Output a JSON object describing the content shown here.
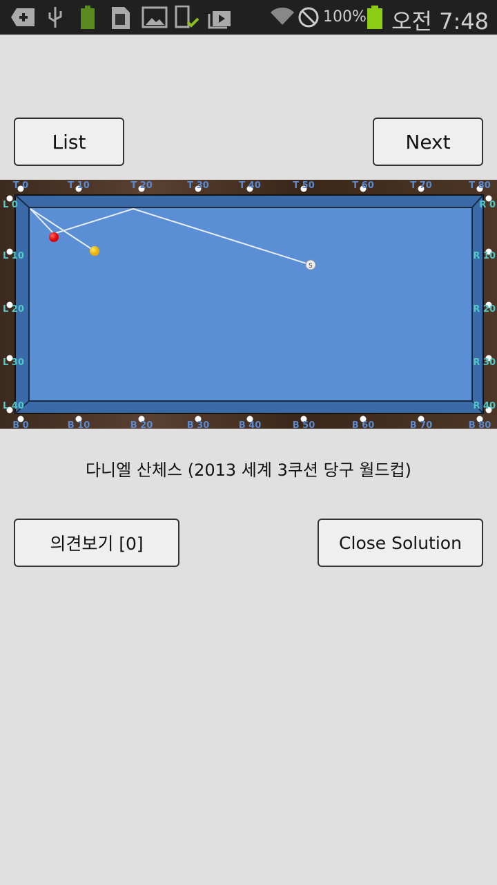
{
  "status_bar": {
    "time": "오전 7:48",
    "battery_percent": "100%",
    "notif_battery": "100%",
    "icons": [
      "add-icon",
      "usb-icon",
      "battery-icon",
      "sd-card-icon",
      "image-icon",
      "device-check-icon",
      "play-store-icon",
      "wifi-icon",
      "blocked-icon",
      "battery-icon"
    ]
  },
  "toolbar": {
    "list_label": "List",
    "next_label": "Next"
  },
  "table": {
    "top_labels": [
      "T 0",
      "T 10",
      "T 20",
      "T 30",
      "T 40",
      "T 50",
      "T 60",
      "T 70",
      "T 80"
    ],
    "bottom_labels": [
      "B 0",
      "B 10",
      "B 20",
      "B 30",
      "B 40",
      "B 50",
      "B 60",
      "B 70",
      "B 80"
    ],
    "left_labels": [
      "L 0",
      "L 10",
      "L 20",
      "L 30",
      "L 40"
    ],
    "right_labels": [
      "R 0",
      "R 10",
      "R 20",
      "R 30",
      "R 40"
    ],
    "cue_ball_label": "S",
    "colors": {
      "felt": "#5a8fd6",
      "cushion": "#3a6aa8",
      "wood": "#4a3324",
      "red_ball": "#ee1111",
      "yellow_ball": "#f2c400",
      "label": "#5b8ad0",
      "side_label": "#4fc8c8"
    }
  },
  "caption": "다니엘 산체스  (2013 세계 3쿠션 당구 월드컵)",
  "actions": {
    "opinions_label": "의견보기 [0]",
    "close_solution_label": "Close Solution"
  }
}
